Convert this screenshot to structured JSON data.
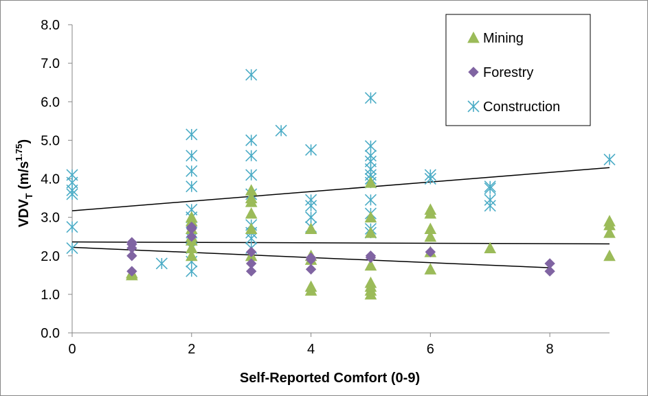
{
  "chart_data": {
    "type": "scatter",
    "xlabel": "Self-Reported Comfort (0-9)",
    "ylabel": {
      "main": "VDV",
      "sub": "T",
      "unit_open": " (m/s",
      "sup": "1.75",
      "unit_close": ")"
    },
    "xlim": [
      0,
      9
    ],
    "ylim": [
      0,
      8
    ],
    "x_ticks": [
      0,
      2,
      4,
      6,
      8
    ],
    "x_tick_labels": [
      "0",
      "2",
      "4",
      "6",
      "8"
    ],
    "y_ticks": [
      0,
      1,
      2,
      3,
      4,
      5,
      6,
      7,
      8
    ],
    "y_tick_labels": [
      "0.0",
      "1.0",
      "2.0",
      "3.0",
      "4.0",
      "5.0",
      "6.0",
      "7.0",
      "8.0"
    ],
    "grid": false,
    "legend_position": "top-right",
    "series": [
      {
        "name": "Mining",
        "marker": "triangle",
        "color": "#9bbb59",
        "points": [
          [
            1,
            1.5
          ],
          [
            1,
            1.55
          ],
          [
            2,
            2.0
          ],
          [
            2,
            2.2
          ],
          [
            2,
            2.4
          ],
          [
            2,
            2.5
          ],
          [
            2,
            2.7
          ],
          [
            2,
            2.9
          ],
          [
            2,
            3.0
          ],
          [
            3,
            2.0
          ],
          [
            3,
            2.7
          ],
          [
            3,
            3.1
          ],
          [
            3,
            3.4
          ],
          [
            3,
            3.5
          ],
          [
            3,
            3.7
          ],
          [
            4,
            1.1
          ],
          [
            4,
            1.2
          ],
          [
            4,
            1.9
          ],
          [
            4,
            2.0
          ],
          [
            4,
            2.7
          ],
          [
            5,
            1.0
          ],
          [
            5,
            1.1
          ],
          [
            5,
            1.2
          ],
          [
            5,
            1.3
          ],
          [
            5,
            1.75
          ],
          [
            5,
            2.6
          ],
          [
            5,
            3.0
          ],
          [
            5,
            3.9
          ],
          [
            6,
            1.65
          ],
          [
            6,
            2.1
          ],
          [
            6,
            2.5
          ],
          [
            6,
            2.7
          ],
          [
            6,
            3.1
          ],
          [
            6,
            3.2
          ],
          [
            7,
            2.2
          ],
          [
            9,
            2.0
          ],
          [
            9,
            2.6
          ],
          [
            9,
            2.8
          ],
          [
            9,
            2.9
          ]
        ]
      },
      {
        "name": "Forestry",
        "marker": "diamond",
        "color": "#8064a2",
        "points": [
          [
            1,
            1.6
          ],
          [
            1,
            2.0
          ],
          [
            1,
            2.2
          ],
          [
            1,
            2.3
          ],
          [
            1,
            2.35
          ],
          [
            2,
            2.5
          ],
          [
            2,
            2.7
          ],
          [
            2,
            2.75
          ],
          [
            3,
            1.6
          ],
          [
            3,
            1.8
          ],
          [
            3,
            2.1
          ],
          [
            4,
            1.65
          ],
          [
            4,
            1.9
          ],
          [
            4,
            1.95
          ],
          [
            5,
            1.95
          ],
          [
            5,
            2.0
          ],
          [
            6,
            2.1
          ],
          [
            8,
            1.6
          ],
          [
            8,
            1.8
          ]
        ]
      },
      {
        "name": "Construction",
        "marker": "asterisk",
        "color": "#4bacc6",
        "points": [
          [
            0,
            2.2
          ],
          [
            0,
            2.75
          ],
          [
            0,
            3.6
          ],
          [
            0,
            3.7
          ],
          [
            0,
            3.9
          ],
          [
            0,
            4.1
          ],
          [
            1.5,
            1.8
          ],
          [
            2,
            1.6
          ],
          [
            2,
            1.85
          ],
          [
            2,
            2.2
          ],
          [
            2,
            2.45
          ],
          [
            2,
            2.6
          ],
          [
            2,
            3.0
          ],
          [
            2,
            3.2
          ],
          [
            2,
            3.8
          ],
          [
            2,
            4.2
          ],
          [
            2,
            4.6
          ],
          [
            2,
            5.15
          ],
          [
            3,
            2.2
          ],
          [
            3,
            2.45
          ],
          [
            3,
            2.6
          ],
          [
            3,
            2.8
          ],
          [
            3,
            3.6
          ],
          [
            3,
            4.1
          ],
          [
            3,
            4.6
          ],
          [
            3,
            5.0
          ],
          [
            3,
            6.7
          ],
          [
            3.5,
            5.25
          ],
          [
            4,
            2.75
          ],
          [
            4,
            3.0
          ],
          [
            4,
            3.3
          ],
          [
            4,
            3.45
          ],
          [
            4,
            4.75
          ],
          [
            5,
            2.6
          ],
          [
            5,
            2.7
          ],
          [
            5,
            3.1
          ],
          [
            5,
            3.45
          ],
          [
            5,
            3.9
          ],
          [
            5,
            4.0
          ],
          [
            5,
            4.1
          ],
          [
            5,
            4.25
          ],
          [
            5,
            4.45
          ],
          [
            5,
            4.6
          ],
          [
            5,
            4.85
          ],
          [
            5,
            6.1
          ],
          [
            6,
            4.0
          ],
          [
            6,
            4.1
          ],
          [
            7,
            3.3
          ],
          [
            7,
            3.45
          ],
          [
            7,
            3.75
          ],
          [
            7,
            3.8
          ],
          [
            9,
            4.5
          ]
        ]
      }
    ],
    "trendlines": [
      {
        "name": "Construction trend",
        "x": [
          0,
          9
        ],
        "y": [
          3.17,
          4.29
        ],
        "color": "#000000"
      },
      {
        "name": "Mining trend",
        "x": [
          0,
          9
        ],
        "y": [
          2.36,
          2.31
        ],
        "color": "#000000"
      },
      {
        "name": "Forestry trend",
        "x": [
          0,
          8
        ],
        "y": [
          2.22,
          1.69
        ],
        "color": "#000000"
      }
    ]
  }
}
